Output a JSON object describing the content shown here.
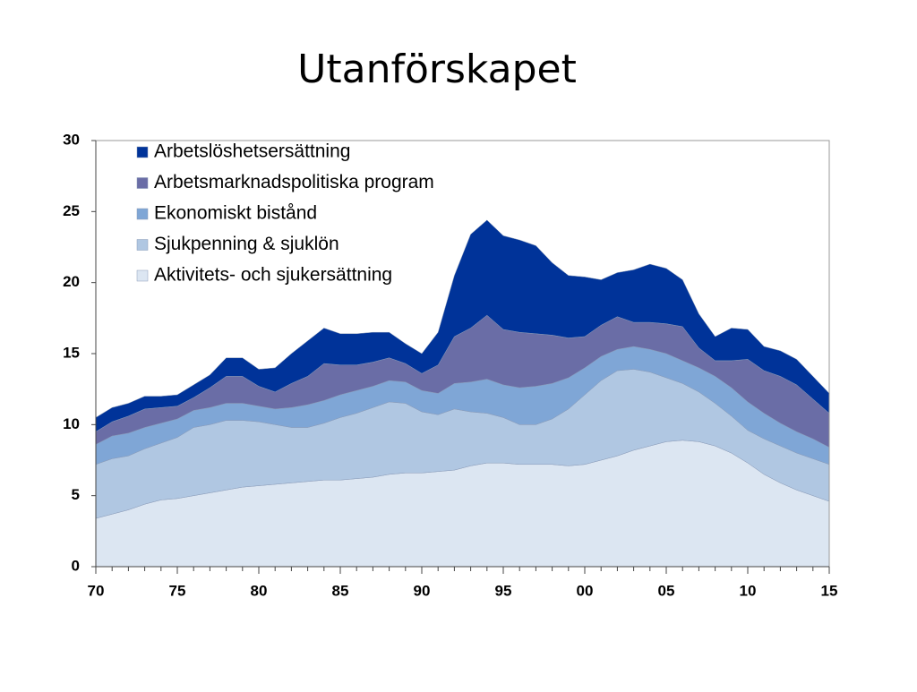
{
  "chart_data": {
    "type": "stacked_area",
    "title": "Utanförskapet",
    "x": [
      1970,
      1971,
      1972,
      1973,
      1974,
      1975,
      1976,
      1977,
      1978,
      1979,
      1980,
      1981,
      1982,
      1983,
      1984,
      1985,
      1986,
      1987,
      1988,
      1989,
      1990,
      1991,
      1992,
      1993,
      1994,
      1995,
      1996,
      1997,
      1998,
      1999,
      2000,
      2001,
      2002,
      2003,
      2004,
      2005,
      2006,
      2007,
      2008,
      2009,
      2010,
      2011,
      2012,
      2013,
      2014,
      2015
    ],
    "xlim": [
      1970,
      2015
    ],
    "xticks": [
      {
        "value": 1970,
        "label": "70"
      },
      {
        "value": 1975,
        "label": "75"
      },
      {
        "value": 1980,
        "label": "80"
      },
      {
        "value": 1985,
        "label": "85"
      },
      {
        "value": 1990,
        "label": "90"
      },
      {
        "value": 1995,
        "label": "95"
      },
      {
        "value": 2000,
        "label": "00"
      },
      {
        "value": 2005,
        "label": "05"
      },
      {
        "value": 2010,
        "label": "10"
      },
      {
        "value": 2015,
        "label": "15"
      }
    ],
    "ylim": [
      0,
      30
    ],
    "yticks": [
      0,
      5,
      10,
      15,
      20,
      25,
      30
    ],
    "legend": "top-left",
    "series": [
      {
        "name": "Arbetslöshetsersättning",
        "color": "#003399",
        "values": [
          1.0,
          1.0,
          0.9,
          0.9,
          0.8,
          0.8,
          0.9,
          0.9,
          1.3,
          1.3,
          1.2,
          1.7,
          2.1,
          2.5,
          2.5,
          2.2,
          2.2,
          2.1,
          1.8,
          1.4,
          1.4,
          2.3,
          4.3,
          6.6,
          6.7,
          6.6,
          6.5,
          6.2,
          5.1,
          4.4,
          4.2,
          3.2,
          3.1,
          3.7,
          4.1,
          3.9,
          3.3,
          2.4,
          1.7,
          2.3,
          2.1,
          1.7,
          1.8,
          1.8,
          1.6,
          1.4
        ]
      },
      {
        "name": "Arbetsmarknadspolitiska program",
        "color": "#6a6da6",
        "values": [
          0.9,
          1.0,
          1.2,
          1.3,
          1.1,
          0.9,
          0.9,
          1.4,
          1.9,
          1.9,
          1.4,
          1.2,
          1.7,
          2.0,
          2.6,
          2.1,
          1.8,
          1.7,
          1.6,
          1.3,
          1.2,
          2.0,
          3.3,
          3.8,
          4.5,
          3.9,
          3.9,
          3.7,
          3.4,
          2.8,
          2.2,
          2.2,
          2.3,
          1.7,
          1.9,
          2.1,
          2.4,
          1.4,
          1.1,
          1.9,
          3.0,
          3.0,
          3.3,
          3.3,
          2.8,
          2.4
        ]
      },
      {
        "name": "Ekonomiskt bistånd",
        "color": "#7fa6d6",
        "values": [
          1.4,
          1.6,
          1.6,
          1.5,
          1.4,
          1.3,
          1.2,
          1.2,
          1.2,
          1.2,
          1.1,
          1.1,
          1.4,
          1.6,
          1.6,
          1.6,
          1.6,
          1.5,
          1.5,
          1.5,
          1.5,
          1.5,
          1.8,
          2.1,
          2.4,
          2.3,
          2.6,
          2.7,
          2.5,
          2.2,
          1.9,
          1.7,
          1.5,
          1.6,
          1.6,
          1.7,
          1.6,
          1.7,
          1.9,
          2.0,
          2.0,
          1.8,
          1.6,
          1.5,
          1.4,
          1.2
        ]
      },
      {
        "name": "Sjukpenning & sjuklön",
        "color": "#b0c7e2",
        "values": [
          3.8,
          3.9,
          3.8,
          3.9,
          4.0,
          4.3,
          4.8,
          4.8,
          4.9,
          4.7,
          4.5,
          4.2,
          3.9,
          3.8,
          4.0,
          4.4,
          4.6,
          4.9,
          5.1,
          4.9,
          4.3,
          4.0,
          4.3,
          3.8,
          3.5,
          3.2,
          2.8,
          2.8,
          3.2,
          4.0,
          4.9,
          5.6,
          6.0,
          5.7,
          5.2,
          4.5,
          4.0,
          3.5,
          3.0,
          2.6,
          2.3,
          2.5,
          2.6,
          2.6,
          2.6,
          2.6
        ]
      },
      {
        "name": "Aktivitets- och sjukersättning",
        "color": "#dce6f2",
        "values": [
          3.4,
          3.7,
          4.0,
          4.4,
          4.7,
          4.8,
          5.0,
          5.2,
          5.4,
          5.6,
          5.7,
          5.8,
          5.9,
          6.0,
          6.1,
          6.1,
          6.2,
          6.3,
          6.5,
          6.6,
          6.6,
          6.7,
          6.8,
          7.1,
          7.3,
          7.3,
          7.2,
          7.2,
          7.2,
          7.1,
          7.2,
          7.5,
          7.8,
          8.2,
          8.5,
          8.8,
          8.9,
          8.8,
          8.5,
          8.0,
          7.3,
          6.5,
          5.9,
          5.4,
          5.0,
          4.6
        ]
      }
    ]
  }
}
